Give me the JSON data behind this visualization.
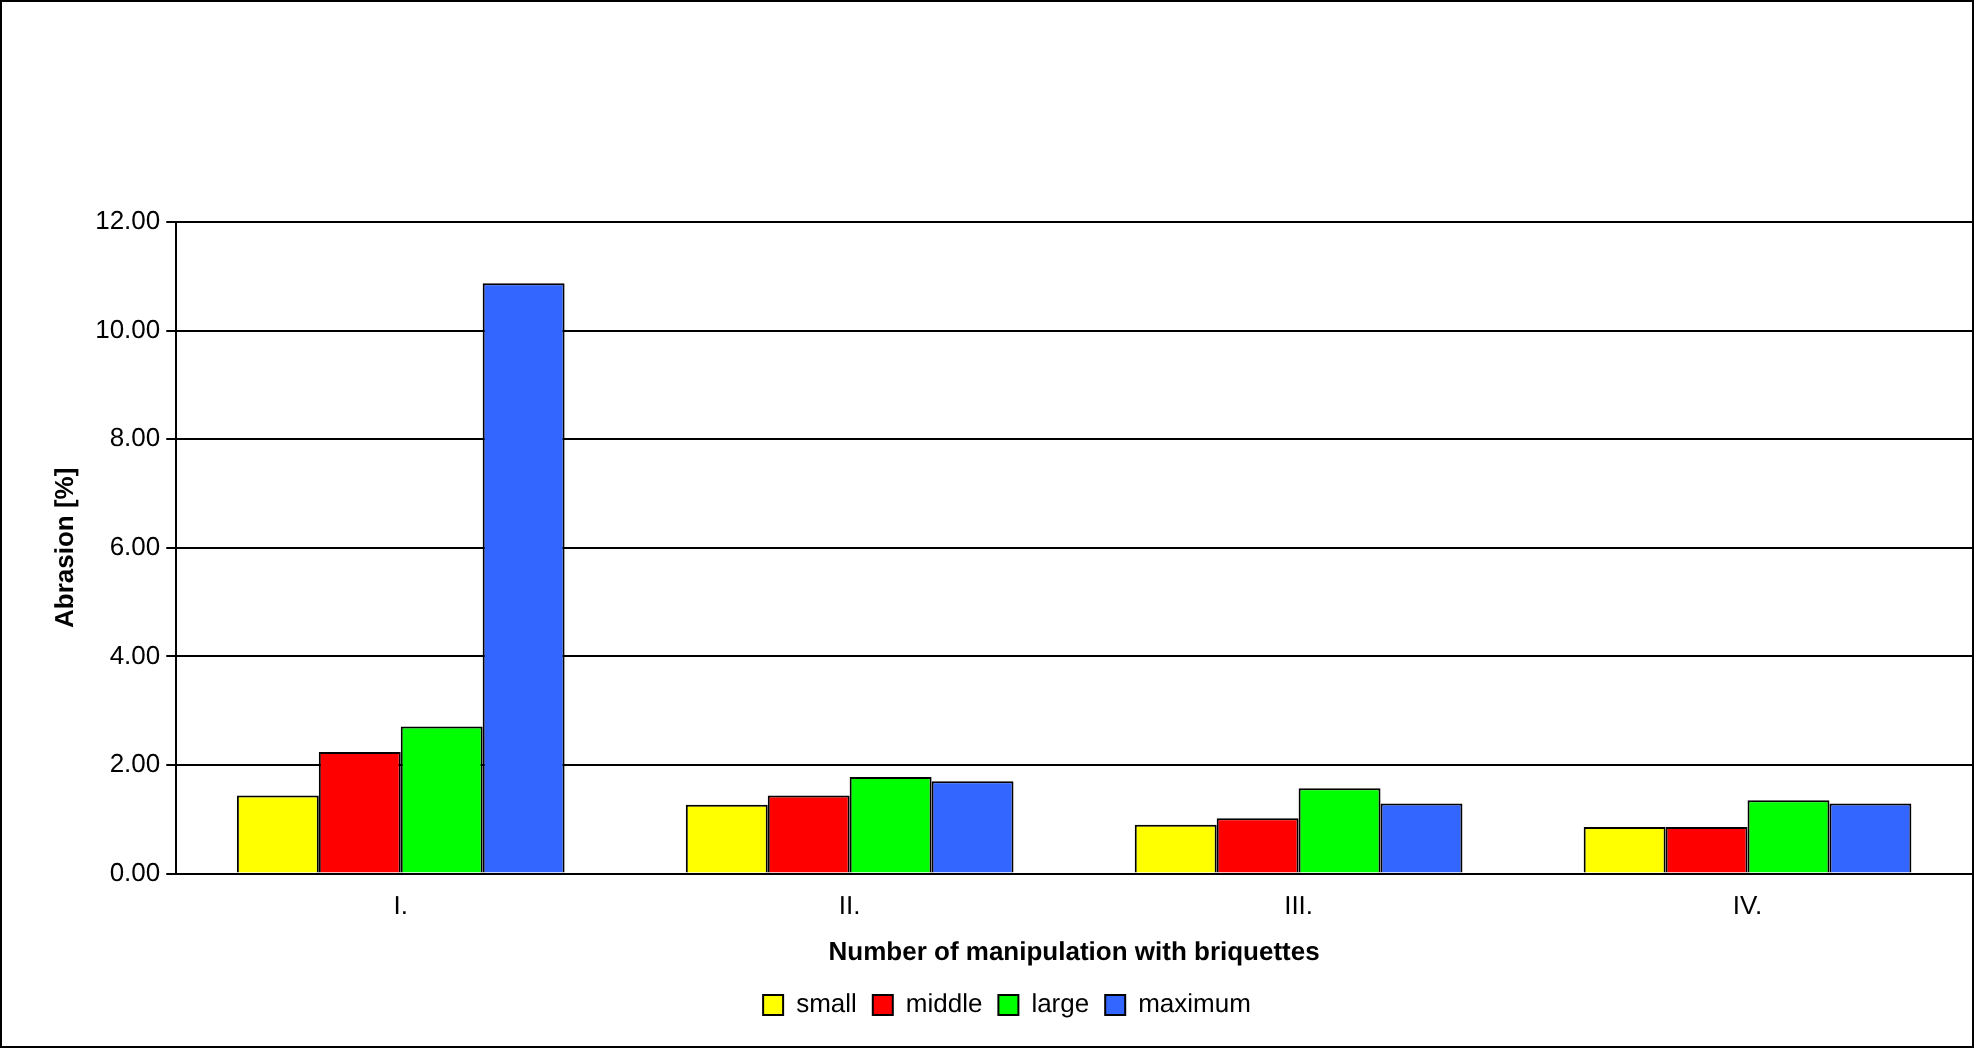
{
  "chart_data": {
    "type": "bar",
    "xlabel": "Number of manipulation with briquettes",
    "ylabel": "Abrasion [%]",
    "categories": [
      "I.",
      "II.",
      "III.",
      "IV."
    ],
    "series": [
      {
        "name": "small",
        "color": "#ffff00",
        "values": [
          1.44,
          1.27,
          0.9,
          0.86
        ]
      },
      {
        "name": "middle",
        "color": "#ff0000",
        "values": [
          2.24,
          1.44,
          1.02,
          0.86
        ]
      },
      {
        "name": "large",
        "color": "#00ff00",
        "values": [
          2.71,
          1.78,
          1.57,
          1.35
        ]
      },
      {
        "name": "maximum",
        "color": "#3366ff",
        "values": [
          10.87,
          1.7,
          1.29,
          1.29
        ]
      }
    ],
    "ylim": [
      0,
      12
    ],
    "yticks": [
      {
        "value": 0,
        "label": "0.00"
      },
      {
        "value": 2,
        "label": "2.00"
      },
      {
        "value": 4,
        "label": "4.00"
      },
      {
        "value": 6,
        "label": "6.00"
      },
      {
        "value": 8,
        "label": "8.00"
      },
      {
        "value": 10,
        "label": "10.00"
      },
      {
        "value": 12,
        "label": "12.00"
      }
    ],
    "grid": "y",
    "legend": "bottom"
  }
}
